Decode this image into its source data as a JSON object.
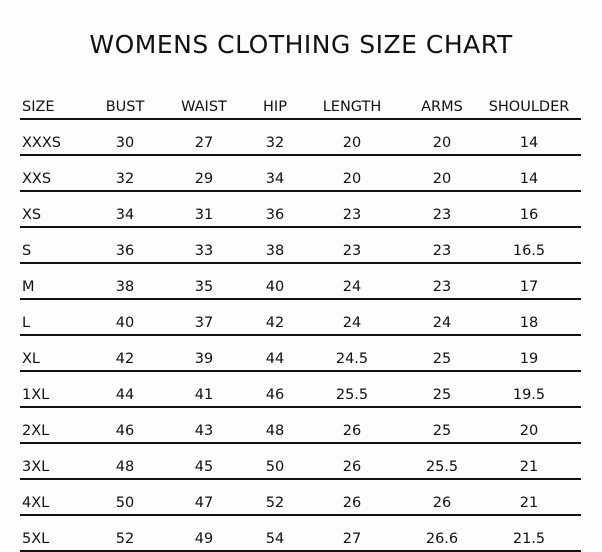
{
  "title": "WOMENS  CLOTHING SIZE CHART",
  "table": {
    "headers": [
      "SIZE",
      "BUST",
      "WAIST",
      "HIP",
      "LENGTH",
      "ARMS",
      "SHOULDER"
    ],
    "rows": [
      [
        "XXXS",
        "30",
        "27",
        "32",
        "20",
        "20",
        "14"
      ],
      [
        "XXS",
        "32",
        "29",
        "34",
        "20",
        "20",
        "14"
      ],
      [
        "XS",
        "34",
        "31",
        "36",
        "23",
        "23",
        "16"
      ],
      [
        "S",
        "36",
        "33",
        "38",
        "23",
        "23",
        "16.5"
      ],
      [
        "M",
        "38",
        "35",
        "40",
        "24",
        "23",
        "17"
      ],
      [
        "L",
        "40",
        "37",
        "42",
        "24",
        "24",
        "18"
      ],
      [
        "XL",
        "42",
        "39",
        "44",
        "24.5",
        "25",
        "19"
      ],
      [
        "1XL",
        "44",
        "41",
        "46",
        "25.5",
        "25",
        "19.5"
      ],
      [
        "2XL",
        "46",
        "43",
        "48",
        "26",
        "25",
        "20"
      ],
      [
        "3XL",
        "48",
        "45",
        "50",
        "26",
        "25.5",
        "21"
      ],
      [
        "4XL",
        "50",
        "47",
        "52",
        "26",
        "26",
        "21"
      ],
      [
        "5XL",
        "52",
        "49",
        "54",
        "27",
        "26.6",
        "21.5"
      ]
    ]
  }
}
